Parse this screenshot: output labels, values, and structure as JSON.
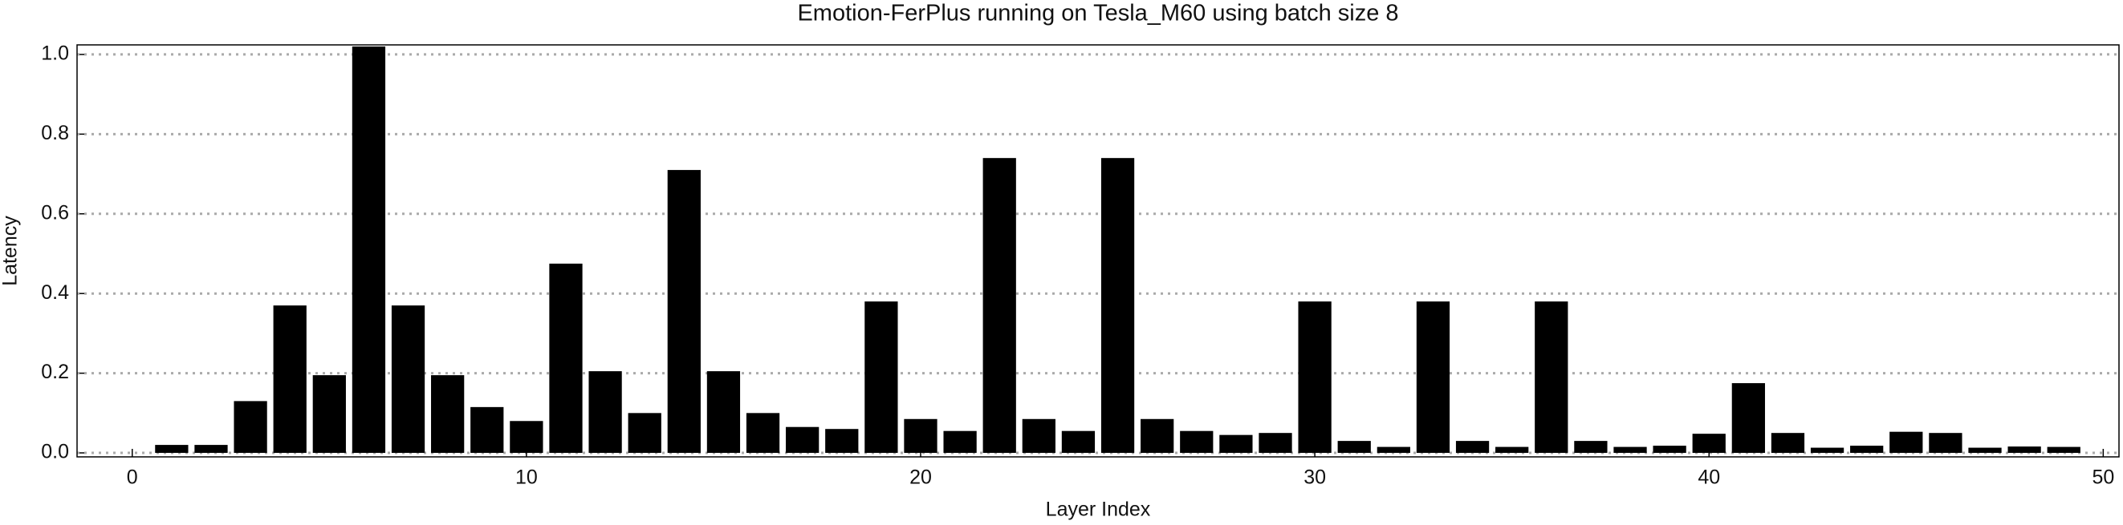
{
  "chart_data": {
    "type": "bar",
    "title": "Emotion-FerPlus running on Tesla_M60 using batch size 8",
    "xlabel": "Layer Index",
    "ylabel": "Latency",
    "x": [
      1,
      2,
      3,
      4,
      5,
      6,
      7,
      8,
      9,
      10,
      11,
      12,
      13,
      14,
      15,
      16,
      17,
      18,
      19,
      20,
      21,
      22,
      23,
      24,
      25,
      26,
      27,
      28,
      29,
      30,
      31,
      32,
      33,
      34,
      35,
      36,
      37,
      38,
      39,
      40,
      41,
      42,
      43,
      44,
      45,
      46,
      47,
      48,
      49
    ],
    "values": [
      0.02,
      0.02,
      0.13,
      0.37,
      0.195,
      1.02,
      0.37,
      0.195,
      0.115,
      0.08,
      0.475,
      0.205,
      0.1,
      0.71,
      0.205,
      0.1,
      0.065,
      0.06,
      0.38,
      0.085,
      0.055,
      0.74,
      0.085,
      0.055,
      0.74,
      0.085,
      0.055,
      0.045,
      0.05,
      0.38,
      0.03,
      0.015,
      0.38,
      0.03,
      0.015,
      0.38,
      0.03,
      0.015,
      0.018,
      0.048,
      0.175,
      0.05,
      0.013,
      0.018,
      0.053,
      0.05,
      0.013,
      0.016,
      0.015
    ],
    "color": "#000000",
    "xlim": [
      -1.4,
      50.4
    ],
    "xticks": [
      0,
      10,
      20,
      30,
      40,
      50
    ],
    "ylim": [
      -0.01,
      1.024
    ],
    "yticks": [
      {
        "value": 0,
        "label": "0.0"
      },
      0.2,
      0.4,
      0.6,
      0.8,
      {
        "value": 1,
        "label": "1.0"
      }
    ],
    "grid": true
  }
}
